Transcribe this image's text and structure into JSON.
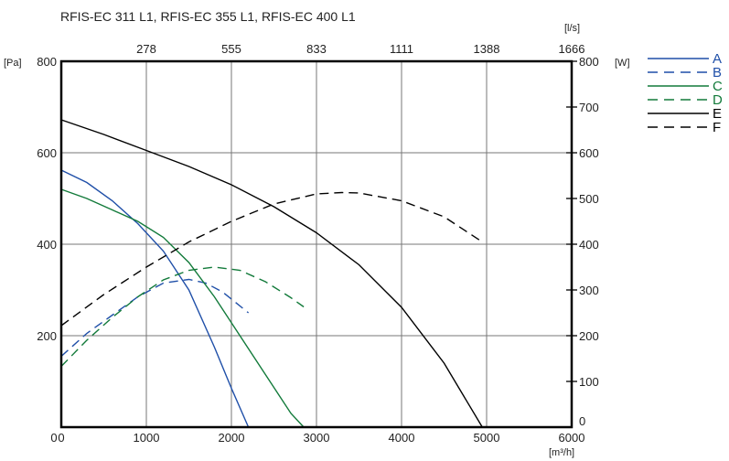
{
  "chart_data": {
    "type": "line",
    "title": "RFIS-EC 311 L1, RFIS-EC 355 L1, RFIS-EC 400 L1",
    "x_bottom": {
      "unit": "[m³/h]",
      "ticks": [
        0,
        1000,
        2000,
        3000,
        4000,
        5000,
        6000
      ],
      "range": [
        0,
        6000
      ]
    },
    "x_top": {
      "unit": "[l/s]",
      "ticks": [
        "278",
        "555",
        "833",
        "1111",
        "1388",
        "1666"
      ]
    },
    "y_left": {
      "unit": "[Pa]",
      "ticks": [
        200,
        400,
        600,
        800
      ],
      "zero_label": "0",
      "range": [
        0,
        800
      ]
    },
    "y_right": {
      "unit": "[W]",
      "ticks": [
        0,
        100,
        200,
        300,
        400,
        500,
        600,
        700,
        800
      ],
      "range": [
        0,
        800
      ]
    },
    "grid": true,
    "legend_position": "right",
    "series": [
      {
        "name": "A",
        "color": "#1f4fa8",
        "dash": "solid",
        "axis": "left",
        "x": [
          0,
          300,
          600,
          900,
          1200,
          1500,
          1800,
          2000,
          2200
        ],
        "y": [
          562,
          535,
          495,
          445,
          385,
          300,
          175,
          85,
          0
        ]
      },
      {
        "name": "B",
        "color": "#1f4fa8",
        "dash": "dashed",
        "axis": "right",
        "x": [
          0,
          300,
          600,
          900,
          1200,
          1500,
          1700,
          1900,
          2200
        ],
        "y": [
          155,
          205,
          245,
          285,
          315,
          323,
          315,
          295,
          250
        ]
      },
      {
        "name": "C",
        "color": "#127a3a",
        "dash": "solid",
        "axis": "left",
        "x": [
          0,
          300,
          600,
          900,
          1200,
          1500,
          1800,
          2100,
          2400,
          2700,
          2850
        ],
        "y": [
          520,
          500,
          475,
          450,
          415,
          360,
          285,
          200,
          115,
          30,
          0
        ]
      },
      {
        "name": "D",
        "color": "#127a3a",
        "dash": "dashed",
        "axis": "right",
        "x": [
          0,
          300,
          600,
          900,
          1200,
          1500,
          1800,
          2100,
          2400,
          2700,
          2850
        ],
        "y": [
          133,
          190,
          240,
          285,
          322,
          343,
          350,
          343,
          318,
          283,
          263
        ]
      },
      {
        "name": "E",
        "color": "#000000",
        "dash": "solid",
        "axis": "left",
        "x": [
          0,
          500,
          1000,
          1500,
          2000,
          2500,
          3000,
          3500,
          4000,
          4500,
          4950
        ],
        "y": [
          672,
          640,
          605,
          570,
          530,
          482,
          425,
          355,
          262,
          140,
          0
        ]
      },
      {
        "name": "F",
        "color": "#000000",
        "dash": "dashed",
        "axis": "right",
        "x": [
          0,
          500,
          1000,
          1500,
          2000,
          2500,
          3000,
          3300,
          3500,
          4000,
          4500,
          4950
        ],
        "y": [
          222,
          290,
          350,
          405,
          450,
          488,
          510,
          513,
          512,
          495,
          460,
          405
        ]
      }
    ]
  }
}
